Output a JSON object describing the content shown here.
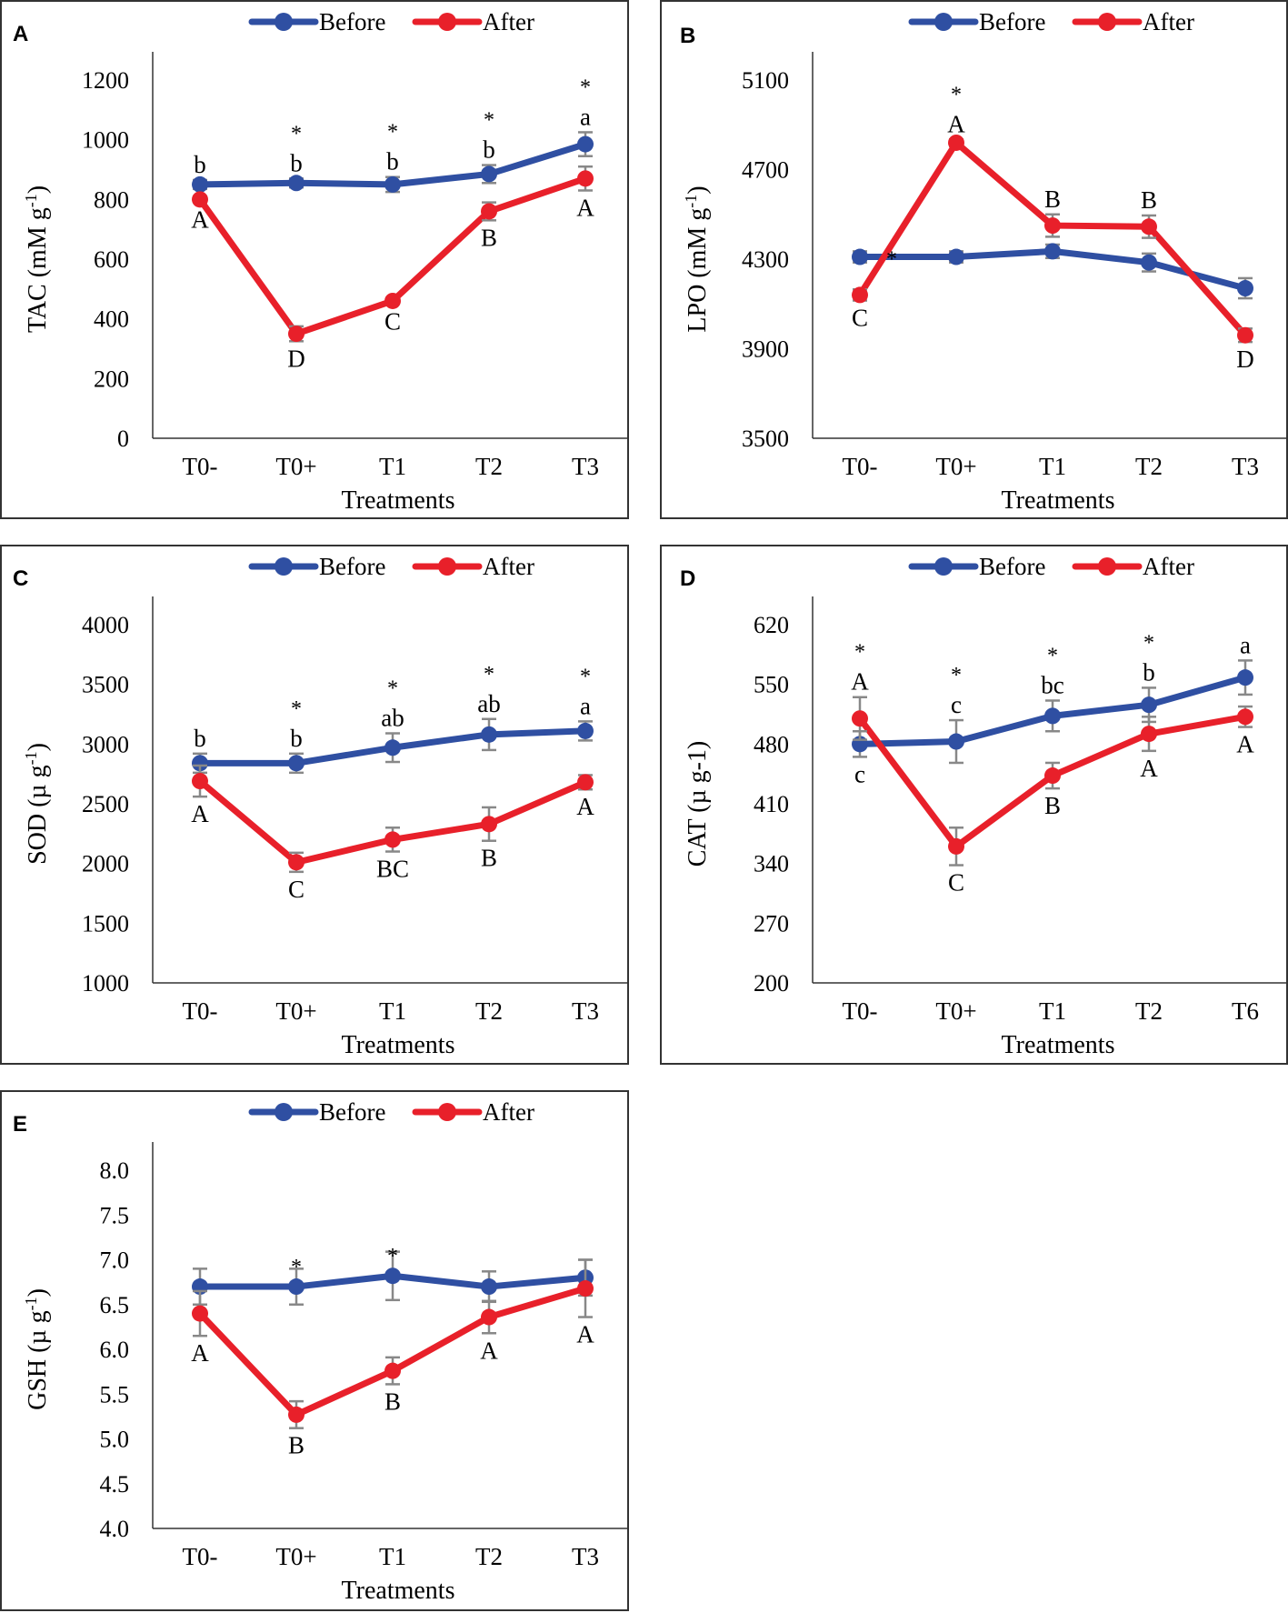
{
  "colors": {
    "before": "#2f4fa2",
    "after": "#e8202a",
    "after_marker_edge": "#f0a030",
    "error": "#888888"
  },
  "legend": {
    "before": "Before",
    "after": "After"
  },
  "chart_data": [
    {
      "panel": "A",
      "type": "line",
      "ylabel": "TAC (mM g",
      "ylabel_sup": "-1",
      "ylabel_end": ")",
      "xlabel": "Treatments",
      "categories": [
        "T0-",
        "T0+",
        "T1",
        "T2",
        "T3"
      ],
      "ylim": [
        0,
        1200
      ],
      "ystep": 200,
      "decimals": 0,
      "series": [
        {
          "name": "Before",
          "values": [
            850,
            855,
            850,
            885,
            985
          ],
          "errors": [
            15,
            15,
            25,
            30,
            40
          ],
          "letters": [
            "b",
            "b",
            "b",
            "b",
            "a"
          ]
        },
        {
          "name": "After",
          "values": [
            800,
            350,
            460,
            760,
            870
          ],
          "errors": [
            10,
            25,
            10,
            30,
            40
          ],
          "letters": [
            "A",
            "D",
            "C",
            "B",
            "A"
          ]
        }
      ],
      "asterisks": [
        {
          "at": 1
        },
        {
          "at": 2
        },
        {
          "at": 3
        },
        {
          "at": 4
        }
      ]
    },
    {
      "panel": "B",
      "type": "line",
      "ylabel": "LPO (mM g",
      "ylabel_sup": "-1",
      "ylabel_end": ")",
      "xlabel": "Treatments",
      "categories": [
        "T0-",
        "T0+",
        "T1",
        "T2",
        "T3"
      ],
      "ylim": [
        3500,
        5100
      ],
      "ystep": 400,
      "decimals": 0,
      "series": [
        {
          "name": "Before",
          "values": [
            4310,
            4310,
            4335,
            4285,
            4170
          ],
          "errors": [
            25,
            25,
            30,
            40,
            45
          ],
          "letters": [
            "",
            "",
            "",
            "",
            ""
          ]
        },
        {
          "name": "After",
          "values": [
            4140,
            4820,
            4450,
            4445,
            3960
          ],
          "errors": [
            25,
            15,
            50,
            50,
            30
          ],
          "letters": [
            "C",
            "A",
            "B",
            "B",
            "D"
          ]
        }
      ],
      "asterisks": [
        {
          "at": 0.33,
          "value": 4310
        },
        {
          "at": 1
        }
      ]
    },
    {
      "panel": "C",
      "type": "line",
      "ylabel": "SOD (µ g",
      "ylabel_sup": "-1",
      "ylabel_end": ")",
      "xlabel": "Treatments",
      "categories": [
        "T0-",
        "T0+",
        "T1",
        "T2",
        "T3"
      ],
      "ylim": [
        1000,
        4000
      ],
      "ystep": 500,
      "decimals": 0,
      "series": [
        {
          "name": "Before",
          "values": [
            2840,
            2840,
            2970,
            3080,
            3110
          ],
          "errors": [
            80,
            80,
            120,
            130,
            80
          ],
          "letters": [
            "b",
            "b",
            "ab",
            "ab",
            "a"
          ]
        },
        {
          "name": "After",
          "values": [
            2690,
            2010,
            2200,
            2330,
            2680
          ],
          "errors": [
            130,
            80,
            100,
            140,
            60
          ],
          "letters": [
            "A",
            "C",
            "BC",
            "B",
            "A"
          ]
        }
      ],
      "asterisks": [
        {
          "at": 1
        },
        {
          "at": 2
        },
        {
          "at": 3
        },
        {
          "at": 4
        }
      ]
    },
    {
      "panel": "D",
      "type": "line",
      "ylabel": "CAT (µ g-1)",
      "ylabel_sup": "",
      "ylabel_end": "",
      "xlabel": "Treatments",
      "categories": [
        "T0-",
        "T0+",
        "T1",
        "T2",
        "T6"
      ],
      "ylim": [
        200,
        620
      ],
      "ystep": 70,
      "decimals": 0,
      "series": [
        {
          "name": "Before",
          "values": [
            480,
            483,
            513,
            526,
            558
          ],
          "errors": [
            15,
            25,
            18,
            20,
            20
          ],
          "letters": [
            "c",
            "c",
            "bc",
            "b",
            "a"
          ]
        },
        {
          "name": "After",
          "values": [
            510,
            360,
            443,
            492,
            512
          ],
          "errors": [
            25,
            22,
            15,
            20,
            12
          ],
          "letters": [
            "A",
            "C",
            "B",
            "A",
            "A"
          ]
        }
      ],
      "asterisks": [
        {
          "at": 0
        },
        {
          "at": 1
        },
        {
          "at": 2
        },
        {
          "at": 3
        }
      ]
    },
    {
      "panel": "E",
      "type": "line",
      "ylabel": "GSH (µ g",
      "ylabel_sup": "-1",
      "ylabel_end": ")",
      "xlabel": "Treatments",
      "categories": [
        "T0-",
        "T0+",
        "T1",
        "T2",
        "T3"
      ],
      "ylim": [
        4.0,
        8.0
      ],
      "ystep": 0.5,
      "decimals": 1,
      "series": [
        {
          "name": "Before",
          "values": [
            6.7,
            6.7,
            6.82,
            6.7,
            6.8
          ],
          "errors": [
            0.2,
            0.2,
            0.27,
            0.17,
            0.2
          ],
          "letters": [
            "",
            "",
            "",
            "",
            ""
          ]
        },
        {
          "name": "After",
          "values": [
            6.4,
            5.27,
            5.76,
            6.36,
            6.68
          ],
          "errors": [
            0.25,
            0.15,
            0.15,
            0.18,
            0.32
          ],
          "letters": [
            "A",
            "B",
            "B",
            "A",
            "A"
          ]
        }
      ],
      "asterisks": [
        {
          "at": 1
        },
        {
          "at": 2
        }
      ]
    }
  ]
}
